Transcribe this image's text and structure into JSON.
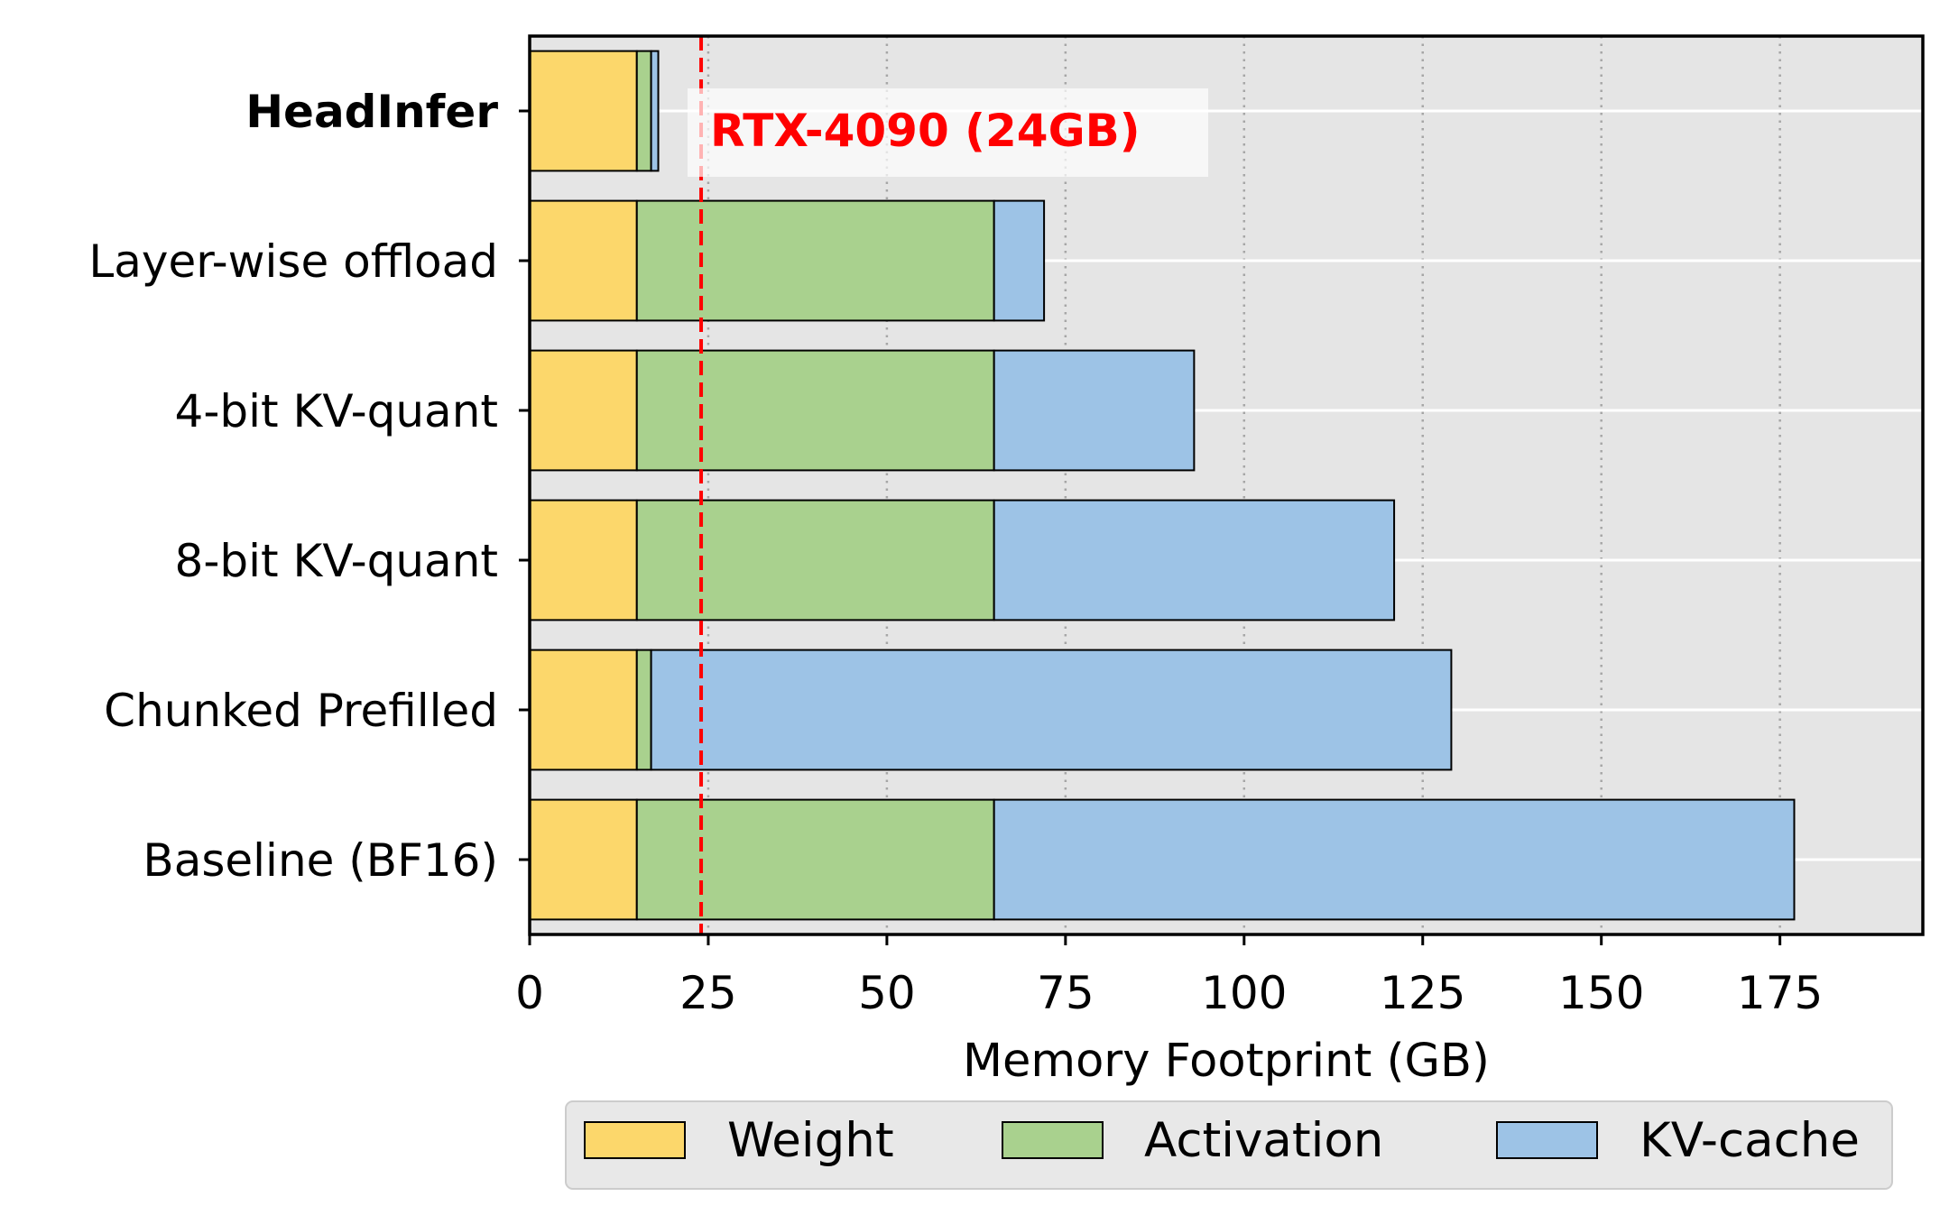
{
  "chart_data": {
    "type": "bar",
    "orientation": "horizontal",
    "stacked": true,
    "categories": [
      "HeadInfer",
      "Layer-wise offload",
      "4-bit KV-quant",
      "8-bit KV-quant",
      "Chunked Prefilled",
      "Baseline (BF16)"
    ],
    "highlight_category": "HeadInfer",
    "series": [
      {
        "name": "Weight",
        "color": "#fcd76b",
        "values": [
          15,
          15,
          15,
          15,
          15,
          15
        ]
      },
      {
        "name": "Activation",
        "color": "#a9d18e",
        "values": [
          2,
          50,
          50,
          50,
          2,
          50
        ]
      },
      {
        "name": "KV-cache",
        "color": "#9dc3e6",
        "values": [
          1,
          7,
          28,
          56,
          112,
          112
        ]
      }
    ],
    "xlabel": "Memory Footprint (GB)",
    "ylabel": "",
    "xlim": [
      0,
      195
    ],
    "xticks": [
      0,
      25,
      50,
      75,
      100,
      125,
      150,
      175
    ],
    "xtick_labels": [
      "0",
      "25",
      "50",
      "75",
      "100",
      "125",
      "150",
      "175"
    ],
    "grid": "x dotted, y solid white",
    "background": "#e5e5e5",
    "legend_position": "bottom",
    "reference_line": {
      "value": 24,
      "label": "RTX-4090 (24GB)",
      "color": "#ff0000",
      "style": "dashed"
    }
  }
}
